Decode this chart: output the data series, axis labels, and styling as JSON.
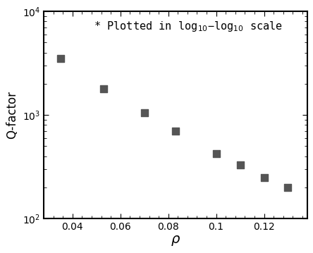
{
  "x": [
    0.035,
    0.053,
    0.07,
    0.083,
    0.1,
    0.11,
    0.12,
    0.13
  ],
  "y": [
    3500,
    1800,
    1050,
    700,
    420,
    330,
    250,
    200
  ],
  "marker": "s",
  "marker_color": "#555555",
  "marker_size": 7,
  "xlabel": "$\\rho$",
  "ylabel": "Q-factor",
  "xlabel_fontsize": 14,
  "ylabel_fontsize": 12,
  "annotation": "* Plotted in log$_{10}$−log$_{10}$ scale",
  "annotation_fontsize": 11,
  "xlim": [
    0.028,
    0.138
  ],
  "ylim": [
    100,
    10000
  ],
  "xticks": [
    0.04,
    0.06,
    0.08,
    0.1,
    0.12
  ],
  "xtick_labels": [
    "0.04",
    "0.06",
    "0.08",
    "0.1",
    "0.12"
  ],
  "yticks": [
    100,
    1000,
    10000
  ],
  "background_color": "#ffffff",
  "figure_width": 4.44,
  "figure_height": 3.59,
  "dpi": 100
}
